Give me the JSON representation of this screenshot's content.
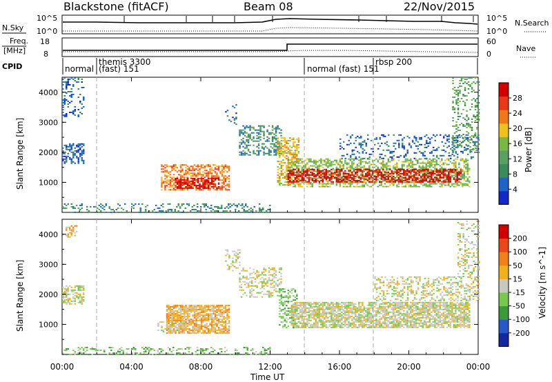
{
  "header": {
    "station": "Blackstone (fitACF)",
    "beam": "Beam 08",
    "date": "22/Nov/2015"
  },
  "strip_labels": {
    "nsky": "N.Sky",
    "freq_line1": "Freq.",
    "freq_line2": "[MHz]",
    "cpid": "CPID",
    "nsearch": "N.Search",
    "nave": "Nave"
  },
  "strip_ticks": {
    "nsky_left": [
      "10^5",
      "10^0"
    ],
    "nsearch_right": [
      "10^5",
      "10^0"
    ],
    "freq_left": [
      "18",
      "8"
    ],
    "nave_right": [
      "60",
      "0"
    ]
  },
  "cpid_segments": [
    {
      "label": "normal",
      "label2": ""
    },
    {
      "label": "themis 3300",
      "label2": "(fast) 151"
    },
    {
      "label": "normal (fast) 151",
      "label2": ""
    },
    {
      "label": "rbsp 200",
      "label2": ""
    }
  ],
  "colors": {
    "power_scale": [
      "#1428c8",
      "#1e64c8",
      "#3a8a5a",
      "#5aa060",
      "#7ab844",
      "#f0c020",
      "#f07818",
      "#e83818",
      "#d00000"
    ],
    "velocity_scale": [
      "#1428a0",
      "#2858c8",
      "#3a9a3a",
      "#78c850",
      "#c8c8c0",
      "#f0b020",
      "#f08018",
      "#e84818",
      "#d00000"
    ]
  },
  "chart_data": [
    {
      "type": "heatmap",
      "name": "power",
      "ylabel": "Slant Range [km]",
      "ylim": [
        0,
        4500
      ],
      "y_ticks": [
        "1000",
        "2000",
        "3000",
        "4000"
      ],
      "colorbar_label": "Power [dB]",
      "colorbar_ticks": [
        "28",
        "24",
        "20",
        "16",
        "12",
        "8",
        "4"
      ],
      "colorbar_range": [
        0,
        32
      ]
    },
    {
      "type": "heatmap",
      "name": "velocity",
      "ylabel": "Slant Range [km]",
      "ylim": [
        0,
        4500
      ],
      "y_ticks": [
        "1000",
        "2000",
        "3000",
        "4000"
      ],
      "colorbar_label": "Velocity [m s^-1]",
      "colorbar_ticks": [
        "200",
        "100",
        "50",
        "15",
        "-15",
        "-50",
        "-100",
        "-200"
      ]
    }
  ],
  "x_axis": {
    "label": "Time UT",
    "ticks": [
      "00:00",
      "04:00",
      "08:00",
      "12:00",
      "16:00",
      "20:00",
      "00:00"
    ],
    "range_hours": [
      0,
      24
    ]
  },
  "regions": [
    {
      "panel": "power",
      "t0": 0.0,
      "t1": 1.2,
      "r0": 1650,
      "r1": 2300,
      "color": 1,
      "density": 0.45
    },
    {
      "panel": "power",
      "t0": 0.0,
      "t1": 1.2,
      "r0": 3200,
      "r1": 4500,
      "color": 1,
      "density": 0.25
    },
    {
      "panel": "power",
      "t0": 5.7,
      "t1": 9.6,
      "r0": 750,
      "r1": 1600,
      "color": 6,
      "density": 0.55
    },
    {
      "panel": "power",
      "t0": 6.5,
      "t1": 9.0,
      "r0": 800,
      "r1": 1150,
      "color": 8,
      "density": 0.6
    },
    {
      "panel": "power",
      "t0": 9.4,
      "t1": 10.0,
      "r0": 2900,
      "r1": 3600,
      "color": 1,
      "density": 0.2
    },
    {
      "panel": "power",
      "t0": 10.2,
      "t1": 12.6,
      "r0": 1900,
      "r1": 2900,
      "color": 2,
      "density": 0.35
    },
    {
      "panel": "power",
      "t0": 12.4,
      "t1": 13.6,
      "r0": 900,
      "r1": 2500,
      "color": 5,
      "density": 0.5
    },
    {
      "panel": "power",
      "t0": 13.0,
      "t1": 23.5,
      "r0": 850,
      "r1": 1800,
      "color": 4,
      "density": 0.5
    },
    {
      "panel": "power",
      "t0": 13.0,
      "t1": 23.0,
      "r0": 1000,
      "r1": 1450,
      "color": 8,
      "density": 0.55
    },
    {
      "panel": "power",
      "t0": 16.0,
      "t1": 24.0,
      "r0": 1800,
      "r1": 2600,
      "color": 1,
      "density": 0.2
    },
    {
      "panel": "power",
      "t0": 22.5,
      "t1": 24.0,
      "r0": 2000,
      "r1": 4500,
      "color": 3,
      "density": 0.25
    },
    {
      "panel": "power",
      "t0": 0.0,
      "t1": 12.0,
      "r0": 0,
      "r1": 300,
      "color": 2,
      "density": 0.25
    },
    {
      "panel": "velocity",
      "t0": 0.0,
      "t1": 1.2,
      "r0": 1700,
      "r1": 2300,
      "color": 4,
      "density": 0.55
    },
    {
      "panel": "velocity",
      "t0": 0.2,
      "t1": 0.8,
      "r0": 3900,
      "r1": 4300,
      "color": 5,
      "density": 0.35
    },
    {
      "panel": "velocity",
      "t0": 6.0,
      "t1": 9.6,
      "r0": 700,
      "r1": 1650,
      "color": 5,
      "density": 0.75
    },
    {
      "panel": "velocity",
      "t0": 5.5,
      "t1": 7.0,
      "r0": 750,
      "r1": 1100,
      "color": 4,
      "density": 0.4
    },
    {
      "panel": "velocity",
      "t0": 9.4,
      "t1": 10.2,
      "r0": 2800,
      "r1": 3500,
      "color": 4,
      "density": 0.3
    },
    {
      "panel": "velocity",
      "t0": 10.2,
      "t1": 12.6,
      "r0": 1900,
      "r1": 2900,
      "color": 4,
      "density": 0.35
    },
    {
      "panel": "velocity",
      "t0": 12.5,
      "t1": 13.5,
      "r0": 900,
      "r1": 2200,
      "color": 3,
      "density": 0.45
    },
    {
      "panel": "velocity",
      "t0": 13.2,
      "t1": 23.5,
      "r0": 900,
      "r1": 1750,
      "color": 4,
      "density": 0.75
    },
    {
      "panel": "velocity",
      "t0": 18.0,
      "t1": 24.0,
      "r0": 1800,
      "r1": 2600,
      "color": 4,
      "density": 0.35
    },
    {
      "panel": "velocity",
      "t0": 22.8,
      "t1": 24.0,
      "r0": 2600,
      "r1": 4500,
      "color": 4,
      "density": 0.25
    },
    {
      "panel": "velocity",
      "t0": 0.0,
      "t1": 12.0,
      "r0": 0,
      "r1": 250,
      "color": 3,
      "density": 0.3
    }
  ]
}
